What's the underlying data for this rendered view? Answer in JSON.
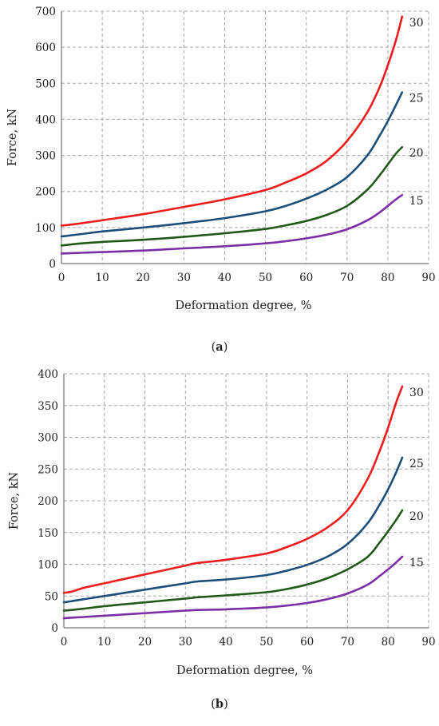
{
  "chart_data": [
    {
      "panel": "a",
      "type": "line",
      "caption": "a",
      "xlabel": "Deformation degree, %",
      "ylabel": "Force, kN",
      "xlim": [
        0,
        90
      ],
      "ylim": [
        0,
        700
      ],
      "xticks": [
        0,
        10,
        20,
        30,
        40,
        50,
        60,
        70,
        80,
        90
      ],
      "yticks": [
        0,
        100,
        200,
        300,
        400,
        500,
        600,
        700
      ],
      "grid": true,
      "series": [
        {
          "name": "30",
          "color": "#ee1c1c",
          "x": [
            0,
            5,
            10,
            20,
            30,
            40,
            50,
            55,
            60,
            65,
            70,
            75,
            78,
            80,
            82,
            83.5
          ],
          "y": [
            105,
            112,
            120,
            137,
            157,
            178,
            204,
            225,
            250,
            285,
            340,
            420,
            490,
            550,
            620,
            685
          ]
        },
        {
          "name": "25",
          "color": "#1c4e7a",
          "x": [
            0,
            5,
            10,
            20,
            30,
            40,
            50,
            55,
            60,
            65,
            70,
            75,
            78,
            80,
            82,
            83.5
          ],
          "y": [
            75,
            82,
            89,
            100,
            112,
            126,
            145,
            160,
            180,
            205,
            240,
            300,
            355,
            395,
            440,
            475
          ]
        },
        {
          "name": "20",
          "color": "#215a18",
          "x": [
            0,
            5,
            10,
            20,
            30,
            40,
            50,
            55,
            60,
            65,
            70,
            75,
            78,
            80,
            82,
            83.5
          ],
          "y": [
            50,
            56,
            60,
            66,
            74,
            84,
            96,
            106,
            118,
            135,
            160,
            205,
            245,
            275,
            305,
            323
          ]
        },
        {
          "name": "15",
          "color": "#7b2fa6",
          "x": [
            0,
            5,
            10,
            20,
            30,
            40,
            50,
            55,
            60,
            65,
            70,
            75,
            78,
            80,
            82,
            83.5
          ],
          "y": [
            28,
            30,
            32,
            36,
            42,
            48,
            56,
            62,
            70,
            80,
            95,
            120,
            142,
            160,
            178,
            190
          ]
        }
      ]
    },
    {
      "panel": "b",
      "type": "line",
      "caption": "b",
      "xlabel": "Deformation degree, %",
      "ylabel": "Force, kN",
      "xlim": [
        0,
        90
      ],
      "ylim": [
        0,
        400
      ],
      "xticks": [
        0,
        10,
        20,
        30,
        40,
        50,
        60,
        70,
        80,
        90
      ],
      "yticks": [
        0,
        50,
        100,
        150,
        200,
        250,
        300,
        350,
        400
      ],
      "grid": true,
      "series": [
        {
          "name": "30",
          "color": "#ee1c1c",
          "x": [
            0,
            2,
            5,
            10,
            20,
            30,
            33,
            40,
            50,
            55,
            60,
            65,
            70,
            75,
            78,
            80,
            82,
            83.5
          ],
          "y": [
            55,
            57,
            63,
            70,
            84,
            98,
            102,
            107,
            117,
            127,
            140,
            158,
            185,
            235,
            280,
            315,
            355,
            380
          ]
        },
        {
          "name": "25",
          "color": "#1c4e7a",
          "x": [
            0,
            2,
            5,
            10,
            20,
            30,
            33,
            40,
            50,
            55,
            60,
            65,
            70,
            75,
            78,
            80,
            82,
            83.5
          ],
          "y": [
            40,
            42,
            45,
            50,
            60,
            70,
            73,
            76,
            83,
            90,
            99,
            112,
            132,
            165,
            195,
            218,
            245,
            268
          ]
        },
        {
          "name": "20",
          "color": "#215a18",
          "x": [
            0,
            2,
            5,
            10,
            20,
            30,
            33,
            40,
            50,
            55,
            60,
            65,
            70,
            75,
            78,
            80,
            82,
            83.5
          ],
          "y": [
            27,
            28,
            30,
            34,
            40,
            46,
            48,
            51,
            56,
            61,
            68,
            78,
            92,
            112,
            135,
            152,
            170,
            185
          ]
        },
        {
          "name": "15",
          "color": "#7b2fa6",
          "x": [
            0,
            2,
            5,
            10,
            20,
            30,
            33,
            40,
            50,
            55,
            60,
            65,
            70,
            75,
            78,
            80,
            82,
            83.5
          ],
          "y": [
            15,
            16,
            17,
            19,
            23,
            27,
            28,
            29,
            32,
            35,
            39,
            45,
            54,
            68,
            82,
            92,
            103,
            112
          ]
        }
      ]
    }
  ]
}
